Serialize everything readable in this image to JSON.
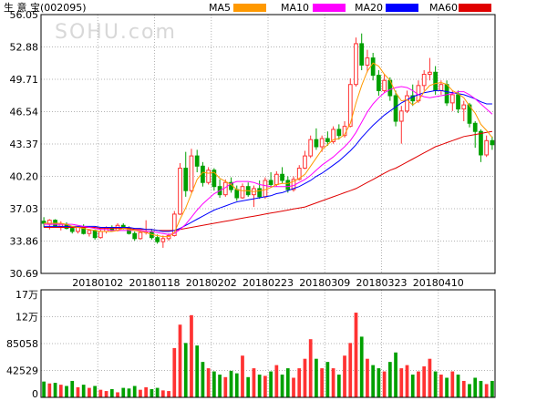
{
  "header": {
    "title": "生 意 宝",
    "code": "(002095)"
  },
  "watermark": "SOHU.com",
  "legend": [
    {
      "label": "MA5",
      "color": "#ff9900"
    },
    {
      "label": "MA10",
      "color": "#ff00ff"
    },
    {
      "label": "MA20",
      "color": "#0000ff"
    },
    {
      "label": "MA60",
      "color": "#e00000"
    }
  ],
  "colors": {
    "up": "#ff3232",
    "down": "#00a000",
    "grid": "#b4b4b4",
    "frame": "#000000"
  },
  "chart_data": {
    "type": "candlestick",
    "price_axis": {
      "ticks": [
        56.05,
        52.88,
        49.71,
        46.54,
        43.37,
        40.2,
        37.03,
        33.86,
        30.69
      ],
      "range": [
        30.69,
        56.05
      ]
    },
    "date_labels": [
      "20180102",
      "20180118",
      "20180202",
      "20180223",
      "20180309",
      "20180323",
      "20180410"
    ],
    "volume_axis": {
      "ticks": [
        "17万",
        "12万",
        "85058",
        "42529",
        "0"
      ],
      "range": [
        0,
        170116
      ]
    },
    "ohlc": [
      [
        35.8,
        36.2,
        35.2,
        35.6
      ],
      [
        35.5,
        36.0,
        35.0,
        35.9
      ],
      [
        35.9,
        36.0,
        35.2,
        35.3
      ],
      [
        35.3,
        35.8,
        34.9,
        35.5
      ],
      [
        35.5,
        35.7,
        35.0,
        35.1
      ],
      [
        35.1,
        35.2,
        34.6,
        34.8
      ],
      [
        34.8,
        35.3,
        34.6,
        35.2
      ],
      [
        35.2,
        35.5,
        34.5,
        34.6
      ],
      [
        34.6,
        35.0,
        34.3,
        34.9
      ],
      [
        34.9,
        35.0,
        34.0,
        34.2
      ],
      [
        34.2,
        35.0,
        34.1,
        34.8
      ],
      [
        34.8,
        35.3,
        34.6,
        35.2
      ],
      [
        35.2,
        35.4,
        34.8,
        34.9
      ],
      [
        34.9,
        35.6,
        34.8,
        35.4
      ],
      [
        35.4,
        35.6,
        35.0,
        35.1
      ],
      [
        35.1,
        35.3,
        34.5,
        34.6
      ],
      [
        34.6,
        34.8,
        33.9,
        34.1
      ],
      [
        34.1,
        34.9,
        34.0,
        34.7
      ],
      [
        34.7,
        35.9,
        34.5,
        34.8
      ],
      [
        34.8,
        35.0,
        34.0,
        34.2
      ],
      [
        34.2,
        34.5,
        33.6,
        33.8
      ],
      [
        33.8,
        34.4,
        33.2,
        34.1
      ],
      [
        34.1,
        34.6,
        33.9,
        34.4
      ],
      [
        34.4,
        36.8,
        34.3,
        36.5
      ],
      [
        36.5,
        41.5,
        36.4,
        41.0
      ],
      [
        41.0,
        42.6,
        38.2,
        38.8
      ],
      [
        38.8,
        42.9,
        38.6,
        42.2
      ],
      [
        42.2,
        42.8,
        40.6,
        41.2
      ],
      [
        41.2,
        41.6,
        39.2,
        39.6
      ],
      [
        39.6,
        41.1,
        39.4,
        40.8
      ],
      [
        40.8,
        41.0,
        38.8,
        39.2
      ],
      [
        39.2,
        39.9,
        38.1,
        38.4
      ],
      [
        38.4,
        39.9,
        38.2,
        39.6
      ],
      [
        39.6,
        40.1,
        38.6,
        38.9
      ],
      [
        38.9,
        39.3,
        37.8,
        38.1
      ],
      [
        38.1,
        39.5,
        38.0,
        39.2
      ],
      [
        39.2,
        39.6,
        38.2,
        38.4
      ],
      [
        38.4,
        39.3,
        37.2,
        39.0
      ],
      [
        39.0,
        39.8,
        38.0,
        38.2
      ],
      [
        38.2,
        40.1,
        38.0,
        39.8
      ],
      [
        39.8,
        40.6,
        39.1,
        39.4
      ],
      [
        39.4,
        40.7,
        39.2,
        40.4
      ],
      [
        40.4,
        41.1,
        39.5,
        39.8
      ],
      [
        39.8,
        40.2,
        38.6,
        38.9
      ],
      [
        38.9,
        40.2,
        38.7,
        39.9
      ],
      [
        39.9,
        41.3,
        39.8,
        41.0
      ],
      [
        41.0,
        42.7,
        40.9,
        42.2
      ],
      [
        42.2,
        44.2,
        42.0,
        43.8
      ],
      [
        43.8,
        44.9,
        42.8,
        43.1
      ],
      [
        43.1,
        44.2,
        42.6,
        43.9
      ],
      [
        43.9,
        44.6,
        43.2,
        43.6
      ],
      [
        43.6,
        45.1,
        43.4,
        44.8
      ],
      [
        44.8,
        45.3,
        43.8,
        44.2
      ],
      [
        44.2,
        45.6,
        44.0,
        45.1
      ],
      [
        45.1,
        49.8,
        45.0,
        49.2
      ],
      [
        49.2,
        53.8,
        49.0,
        53.2
      ],
      [
        53.2,
        54.2,
        50.6,
        51.1
      ],
      [
        51.1,
        52.6,
        50.4,
        51.8
      ],
      [
        51.8,
        52.3,
        49.6,
        50.1
      ],
      [
        50.1,
        50.6,
        48.1,
        48.6
      ],
      [
        48.6,
        50.2,
        48.4,
        49.6
      ],
      [
        49.6,
        49.9,
        47.6,
        48.1
      ],
      [
        48.1,
        48.6,
        45.1,
        45.6
      ],
      [
        45.6,
        47.1,
        43.4,
        46.6
      ],
      [
        46.6,
        48.6,
        46.4,
        48.1
      ],
      [
        48.1,
        49.2,
        47.1,
        47.6
      ],
      [
        47.6,
        49.6,
        47.4,
        49.1
      ],
      [
        49.1,
        50.6,
        48.6,
        50.2
      ],
      [
        50.2,
        51.8,
        49.6,
        50.4
      ],
      [
        50.4,
        51.0,
        48.2,
        48.6
      ],
      [
        48.6,
        49.6,
        48.2,
        49.2
      ],
      [
        49.2,
        49.6,
        47.1,
        47.4
      ],
      [
        47.4,
        48.6,
        46.6,
        48.2
      ],
      [
        48.2,
        48.6,
        46.4,
        46.8
      ],
      [
        46.8,
        47.6,
        45.6,
        47.2
      ],
      [
        47.2,
        47.4,
        45.0,
        45.4
      ],
      [
        45.4,
        45.6,
        43.0,
        44.6
      ],
      [
        44.6,
        44.8,
        41.6,
        42.3
      ],
      [
        42.3,
        44.2,
        42.1,
        43.7
      ],
      [
        43.7,
        44.1,
        42.8,
        43.3
      ]
    ],
    "volume_wan": [
      2.5,
      2.2,
      2.3,
      2.0,
      1.8,
      2.6,
      1.6,
      2.0,
      1.5,
      1.8,
      1.2,
      1.0,
      1.3,
      0.8,
      1.5,
      1.4,
      1.8,
      1.2,
      1.6,
      1.3,
      1.5,
      1.1,
      1.0,
      7.8,
      11.5,
      8.6,
      13.0,
      8.2,
      5.6,
      4.6,
      4.1,
      3.6,
      3.2,
      4.2,
      3.8,
      6.6,
      3.2,
      4.6,
      3.6,
      3.4,
      4.1,
      5.1,
      3.6,
      4.6,
      3.1,
      4.6,
      6.1,
      9.2,
      6.1,
      4.6,
      5.6,
      4.6,
      3.6,
      6.6,
      8.6,
      13.4,
      9.6,
      6.1,
      5.1,
      4.6,
      4.1,
      5.6,
      7.1,
      4.6,
      5.1,
      3.6,
      4.1,
      4.9,
      6.1,
      4.1,
      3.6,
      3.1,
      4.1,
      3.6,
      2.6,
      2.1,
      3.1,
      2.6,
      2.1,
      2.6
    ],
    "ma5": [
      35.6,
      35.6,
      35.6,
      35.6,
      35.5,
      35.3,
      35.2,
      35.1,
      35.0,
      34.9,
      34.8,
      34.8,
      34.8,
      34.9,
      35.1,
      35.0,
      34.9,
      34.8,
      34.7,
      34.5,
      34.4,
      34.3,
      34.3,
      34.7,
      36.0,
      37.1,
      38.5,
      39.9,
      40.6,
      40.5,
      40.6,
      40.0,
      39.7,
      39.4,
      38.9,
      38.8,
      38.8,
      38.7,
      38.8,
      38.9,
      39.1,
      39.4,
      39.5,
      39.5,
      39.7,
      40.0,
      40.4,
      41.2,
      42.0,
      42.8,
      43.3,
      43.8,
      43.9,
      44.3,
      45.4,
      47.4,
      49.1,
      50.5,
      51.3,
      51.0,
      50.2,
      49.6,
      48.4,
      47.6,
      47.7,
      47.2,
      47.6,
      48.5,
      49.1,
      49.3,
      49.4,
      49.2,
      48.6,
      48.3,
      47.9,
      47.1,
      46.4,
      45.3,
      44.7,
      44.0
    ],
    "ma10": [
      35.5,
      35.5,
      35.5,
      35.5,
      35.5,
      35.5,
      35.4,
      35.3,
      35.2,
      35.1,
      35.0,
      35.0,
      34.9,
      34.9,
      34.9,
      34.9,
      34.9,
      34.9,
      34.8,
      34.8,
      34.7,
      34.6,
      34.5,
      34.6,
      35.0,
      35.5,
      36.2,
      36.9,
      37.5,
      38.0,
      38.5,
      38.8,
      39.1,
      39.5,
      39.7,
      39.7,
      39.7,
      39.6,
      39.4,
      39.3,
      39.2,
      39.2,
      39.2,
      39.2,
      39.3,
      39.6,
      39.9,
      40.3,
      40.8,
      41.3,
      41.7,
      42.1,
      42.6,
      43.1,
      43.7,
      44.5,
      45.5,
      46.5,
      47.3,
      47.9,
      48.4,
      48.7,
      48.9,
      49.0,
      48.9,
      48.6,
      48.2,
      48.0,
      47.9,
      48.0,
      48.1,
      48.2,
      48.3,
      48.5,
      48.5,
      48.2,
      47.8,
      47.3,
      46.8,
      46.3
    ],
    "ma20": [
      35.3,
      35.3,
      35.3,
      35.3,
      35.3,
      35.3,
      35.3,
      35.3,
      35.3,
      35.3,
      35.2,
      35.2,
      35.2,
      35.2,
      35.2,
      35.2,
      35.1,
      35.1,
      35.0,
      35.0,
      34.9,
      34.8,
      34.8,
      34.9,
      35.1,
      35.4,
      35.7,
      36.0,
      36.3,
      36.6,
      36.9,
      37.1,
      37.3,
      37.5,
      37.7,
      37.8,
      37.9,
      38.0,
      38.1,
      38.2,
      38.3,
      38.5,
      38.6,
      38.8,
      39.0,
      39.2,
      39.5,
      39.8,
      40.2,
      40.5,
      40.9,
      41.3,
      41.7,
      42.2,
      42.7,
      43.3,
      44.0,
      44.6,
      45.2,
      45.7,
      46.2,
      46.6,
      47.0,
      47.4,
      47.7,
      48.0,
      48.2,
      48.4,
      48.5,
      48.6,
      48.6,
      48.5,
      48.4,
      48.3,
      48.2,
      48.0,
      47.8,
      47.5,
      47.3,
      47.3
    ],
    "ma60": [
      35.2,
      35.2,
      35.2,
      35.2,
      35.2,
      35.2,
      35.2,
      35.2,
      35.2,
      35.2,
      35.1,
      35.1,
      35.1,
      35.1,
      35.1,
      35.1,
      35.0,
      35.0,
      35.0,
      35.0,
      34.9,
      34.9,
      34.9,
      34.9,
      35.0,
      35.1,
      35.2,
      35.3,
      35.4,
      35.5,
      35.6,
      35.7,
      35.8,
      35.9,
      36.0,
      36.1,
      36.2,
      36.3,
      36.4,
      36.5,
      36.6,
      36.7,
      36.8,
      36.9,
      37.0,
      37.1,
      37.2,
      37.4,
      37.6,
      37.8,
      38.0,
      38.2,
      38.4,
      38.6,
      38.8,
      39.0,
      39.3,
      39.6,
      39.9,
      40.2,
      40.5,
      40.8,
      41.0,
      41.3,
      41.6,
      41.9,
      42.2,
      42.5,
      42.8,
      43.1,
      43.3,
      43.5,
      43.7,
      43.9,
      44.1,
      44.2,
      44.3,
      44.4,
      44.5,
      44.6
    ]
  }
}
